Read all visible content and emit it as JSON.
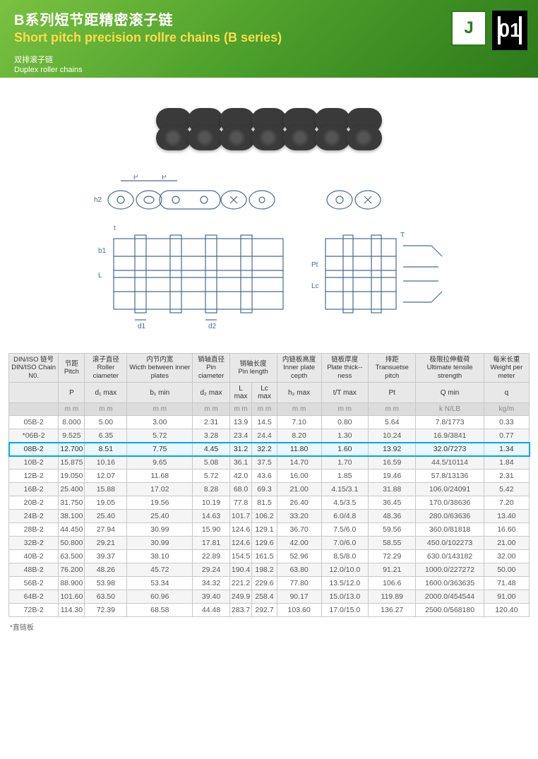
{
  "header": {
    "title_cn": "B系列短节距精密滚子链",
    "title_en": "Short pitch precision rollre chains (B series)",
    "subtitle_cn": "双排滚子链",
    "subtitle_en": "Duplex roller chains",
    "page_number": "01",
    "logo_text": "J"
  },
  "colors": {
    "header_gradient_start": "#7bc142",
    "header_gradient_end": "#2d7a1a",
    "title_en_color": "#ffdb4d",
    "highlight_border": "#00a8e8",
    "table_header_bg": "#e8e8e8",
    "table_border": "#c8c8c8"
  },
  "table": {
    "col_labels_cn": [
      "DIN/ISO 链号",
      "节距",
      "滚子直径",
      "内节内宽",
      "销轴直径",
      "销轴长度",
      "内链板高度",
      "链板厚度",
      "排距",
      "极限拉伸载荷",
      "每米长重"
    ],
    "col_labels_en": [
      "DIN/ISO Chain N0.",
      "Pitch",
      "Roller ciameter",
      "Wicth between inner plates",
      "Pin ciameter",
      "Pin length",
      "Inner plate cepth",
      "Plate thick--ness",
      "Transuetse pitch",
      "Ultimate tensile strength",
      "Weight per meter"
    ],
    "symbols": [
      "",
      "P",
      "d₁ max",
      "b₁ min",
      "d₂ max",
      "L max",
      "Lc max",
      "h₂ max",
      "t/T max",
      "Pt",
      "Q min",
      "q"
    ],
    "units": [
      "",
      "m m",
      "m m",
      "m m",
      "m m",
      "m m",
      "m m",
      "m m",
      "m m",
      "m m",
      "k N/LB",
      "kg/m"
    ],
    "highlight_row_index": 2,
    "rows": [
      [
        "05B-2",
        "8.000",
        "5.00",
        "3.00",
        "2.31",
        "13.9",
        "14.5",
        "7.10",
        "0.80",
        "5.64",
        "7.8/1773",
        "0.33"
      ],
      [
        "*06B-2",
        "9.525",
        "6.35",
        "5.72",
        "3.28",
        "23.4",
        "24.4",
        "8.20",
        "1.30",
        "10.24",
        "16.9/3841",
        "0.77"
      ],
      [
        "08B-2",
        "12.700",
        "8.51",
        "7.75",
        "4.45",
        "31.2",
        "32.2",
        "11.80",
        "1.60",
        "13.92",
        "32.0/7273",
        "1.34"
      ],
      [
        "10B-2",
        "15.875",
        "10.16",
        "9.65",
        "5.08",
        "36.1",
        "37.5",
        "14.70",
        "1.70",
        "16.59",
        "44.5/10114",
        "1.84"
      ],
      [
        "12B-2",
        "19.050",
        "12.07",
        "11.68",
        "5.72",
        "42.0",
        "43.6",
        "16.00",
        "1.85",
        "19.46",
        "57.8/13136",
        "2.31"
      ],
      [
        "16B-2",
        "25.400",
        "15.88",
        "17.02",
        "8.28",
        "68.0",
        "69.3",
        "21.00",
        "4.15/3.1",
        "31.88",
        "106.0/24091",
        "5.42"
      ],
      [
        "20B-2",
        "31.750",
        "19.05",
        "19.56",
        "10.19",
        "77.8",
        "81.5",
        "26.40",
        "4.5/3.5",
        "36.45",
        "170.0/38636",
        "7.20"
      ],
      [
        "24B-2",
        "38.100",
        "25.40",
        "25.40",
        "14.63",
        "101.7",
        "106.2",
        "33.20",
        "6.0/4.8",
        "48.36",
        "280.0/63636",
        "13.40"
      ],
      [
        "28B-2",
        "44.450",
        "27.94",
        "30.99",
        "15.90",
        "124.6",
        "129.1",
        "36.70",
        "7.5/6.0",
        "59.56",
        "360.0/81818",
        "16.60"
      ],
      [
        "32B-2",
        "50.800",
        "29.21",
        "30.99",
        "17.81",
        "124.6",
        "129.6",
        "42.00",
        "7.0/6.0",
        "58.55",
        "450.0/102273",
        "21.00"
      ],
      [
        "40B-2",
        "63.500",
        "39.37",
        "38.10",
        "22.89",
        "154.5",
        "161.5",
        "52.96",
        "8.5/8.0",
        "72.29",
        "630.0/143182",
        "32.00"
      ],
      [
        "48B-2",
        "76.200",
        "48.26",
        "45.72",
        "29.24",
        "190.4",
        "198.2",
        "63.80",
        "12.0/10.0",
        "91.21",
        "1000.0/227272",
        "50.00"
      ],
      [
        "56B-2",
        "88.900",
        "53.98",
        "53.34",
        "34.32",
        "221.2",
        "229.6",
        "77.80",
        "13.5/12.0",
        "106.6",
        "1600.0/363635",
        "71.48"
      ],
      [
        "64B-2",
        "101.60",
        "63.50",
        "60.96",
        "39.40",
        "249.9",
        "258.4",
        "90.17",
        "15.0/13.0",
        "119.89",
        "2000.0/454544",
        "91.00"
      ],
      [
        "72B-2",
        "114.30",
        "72.39",
        "68.58",
        "44.48",
        "283.7",
        "292.7",
        "103.60",
        "17.0/15.0",
        "136.27",
        "2500.0/568180",
        "120.40"
      ]
    ]
  },
  "footnote": "*直链板",
  "diagram_labels": {
    "p1": "P",
    "p2": "P",
    "h2": "h2",
    "t": "t",
    "b1": "b1",
    "L": "L",
    "d1": "d1",
    "d2": "d2",
    "Lc": "Lc",
    "Pt": "Pt",
    "T": "T"
  }
}
